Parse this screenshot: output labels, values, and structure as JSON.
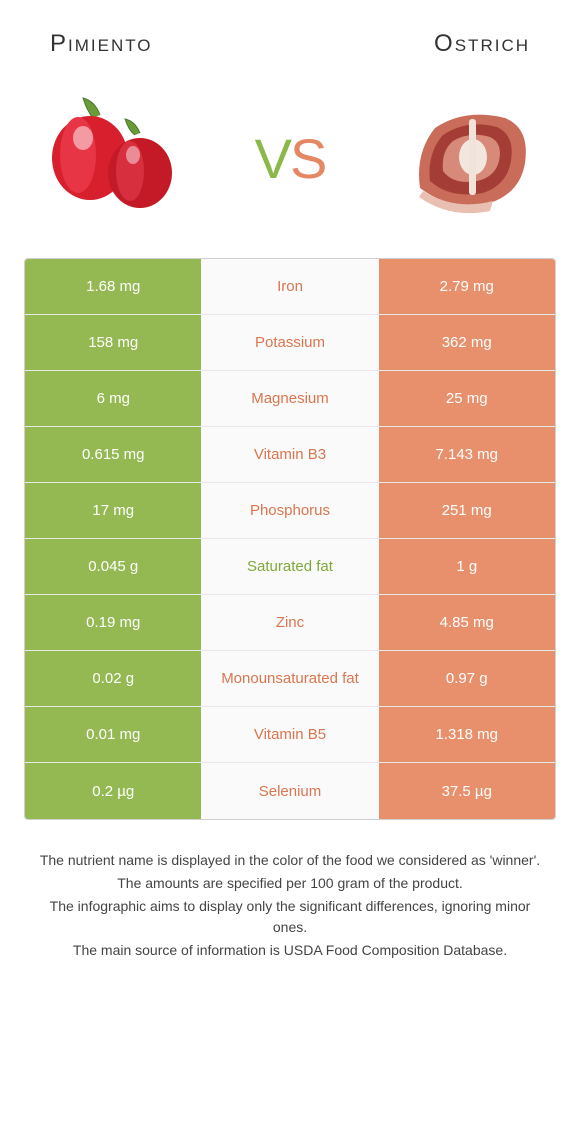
{
  "header": {
    "left_name": "Pimiento",
    "right_name": "Ostrich"
  },
  "vs": {
    "v": "V",
    "s": "S"
  },
  "colors": {
    "left_bg": "#95b952",
    "right_bg": "#e8906c",
    "mid_bg": "#fafafa",
    "winner_left": "#7fa838",
    "winner_right": "#d9764f",
    "border": "#d0d0d0"
  },
  "rows": [
    {
      "left": "1.68 mg",
      "mid": "Iron",
      "right": "2.79 mg",
      "winner": "right"
    },
    {
      "left": "158 mg",
      "mid": "Potassium",
      "right": "362 mg",
      "winner": "right"
    },
    {
      "left": "6 mg",
      "mid": "Magnesium",
      "right": "25 mg",
      "winner": "right"
    },
    {
      "left": "0.615 mg",
      "mid": "Vitamin B3",
      "right": "7.143 mg",
      "winner": "right"
    },
    {
      "left": "17 mg",
      "mid": "Phosphorus",
      "right": "251 mg",
      "winner": "right"
    },
    {
      "left": "0.045 g",
      "mid": "Saturated fat",
      "right": "1 g",
      "winner": "left"
    },
    {
      "left": "0.19 mg",
      "mid": "Zinc",
      "right": "4.85 mg",
      "winner": "right"
    },
    {
      "left": "0.02 g",
      "mid": "Monounsaturated fat",
      "right": "0.97 g",
      "winner": "right"
    },
    {
      "left": "0.01 mg",
      "mid": "Vitamin B5",
      "right": "1.318 mg",
      "winner": "right"
    },
    {
      "left": "0.2 µg",
      "mid": "Selenium",
      "right": "37.5 µg",
      "winner": "right"
    }
  ],
  "footer": {
    "line1": "The nutrient name is displayed in the color of the food we considered as 'winner'.",
    "line2": "The amounts are specified per 100 gram of the product.",
    "line3": "The infographic aims to display only the significant differences, ignoring minor ones.",
    "line4": "The main source of information is USDA Food Composition Database."
  }
}
